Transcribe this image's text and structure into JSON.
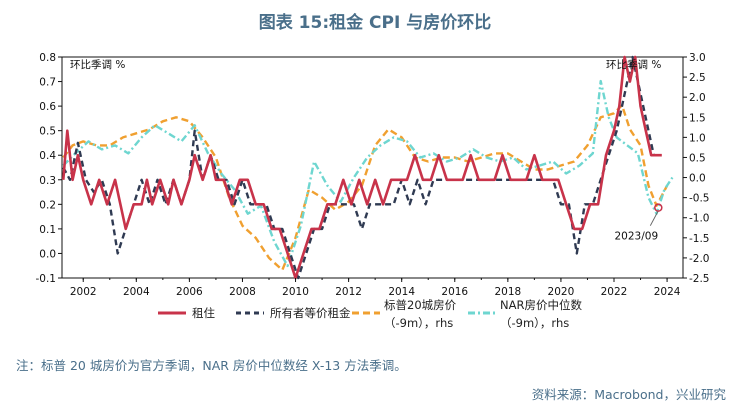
{
  "title": "图表 15:租金 CPI 与房价环比",
  "note": "注：标普 20 城房价为官方季调，NAR 房价中位数经 X-13 方法季调。",
  "source": "资料来源：Macrobond，兴业研究",
  "chart_data": {
    "type": "line",
    "left_axis_label": "环比季调 %",
    "right_axis_label": "环比季调 %",
    "x_ticks": [
      "2002",
      "2004",
      "2006",
      "2008",
      "2010",
      "2012",
      "2014",
      "2016",
      "2018",
      "2020",
      "2022",
      "2024"
    ],
    "y_left": {
      "range": [
        -0.1,
        0.8
      ],
      "ticks": [
        "-0.1",
        "0.0",
        "0.1",
        "0.2",
        "0.3",
        "0.4",
        "0.5",
        "0.6",
        "0.7",
        "0.8"
      ]
    },
    "y_right": {
      "range": [
        -2.5,
        3.0
      ],
      "ticks": [
        "-2.5",
        "-2.0",
        "-1.5",
        "-1.0",
        "-0.5",
        "0.0",
        "0.5",
        "1.0",
        "1.5",
        "2.0",
        "2.5",
        "3.0"
      ]
    },
    "x_range": [
      2001.2,
      2024.6
    ],
    "annotation": {
      "text": "2023/09",
      "x": 2023.67,
      "y": -0.75
    },
    "colors": {
      "rent": "#c8334a",
      "oer": "#2f3a52",
      "cs20": "#f0a030",
      "nar": "#6ed6d0"
    },
    "series": [
      {
        "key": "rent",
        "name": "租住",
        "axis": "left",
        "style": "solid",
        "points": [
          [
            2001.25,
            0.3
          ],
          [
            2001.4,
            0.5
          ],
          [
            2001.6,
            0.3
          ],
          [
            2001.8,
            0.4
          ],
          [
            2002.0,
            0.3
          ],
          [
            2002.3,
            0.2
          ],
          [
            2002.6,
            0.3
          ],
          [
            2002.9,
            0.2
          ],
          [
            2003.2,
            0.3
          ],
          [
            2003.4,
            0.2
          ],
          [
            2003.6,
            0.1
          ],
          [
            2003.9,
            0.2
          ],
          [
            2004.2,
            0.2
          ],
          [
            2004.4,
            0.3
          ],
          [
            2004.6,
            0.2
          ],
          [
            2004.9,
            0.3
          ],
          [
            2005.2,
            0.2
          ],
          [
            2005.4,
            0.3
          ],
          [
            2005.7,
            0.2
          ],
          [
            2006.0,
            0.3
          ],
          [
            2006.2,
            0.4
          ],
          [
            2006.5,
            0.3
          ],
          [
            2006.8,
            0.4
          ],
          [
            2007.0,
            0.3
          ],
          [
            2007.3,
            0.3
          ],
          [
            2007.6,
            0.2
          ],
          [
            2007.9,
            0.3
          ],
          [
            2008.2,
            0.3
          ],
          [
            2008.5,
            0.2
          ],
          [
            2008.8,
            0.2
          ],
          [
            2009.1,
            0.1
          ],
          [
            2009.4,
            0.1
          ],
          [
            2009.7,
            0.0
          ],
          [
            2010.0,
            -0.1
          ],
          [
            2010.3,
            0.0
          ],
          [
            2010.6,
            0.1
          ],
          [
            2010.9,
            0.1
          ],
          [
            2011.2,
            0.2
          ],
          [
            2011.5,
            0.2
          ],
          [
            2011.8,
            0.3
          ],
          [
            2012.1,
            0.2
          ],
          [
            2012.4,
            0.3
          ],
          [
            2012.7,
            0.2
          ],
          [
            2013.0,
            0.3
          ],
          [
            2013.3,
            0.2
          ],
          [
            2013.6,
            0.3
          ],
          [
            2013.9,
            0.3
          ],
          [
            2014.2,
            0.3
          ],
          [
            2014.5,
            0.4
          ],
          [
            2014.8,
            0.3
          ],
          [
            2015.1,
            0.3
          ],
          [
            2015.4,
            0.4
          ],
          [
            2015.7,
            0.3
          ],
          [
            2016.0,
            0.3
          ],
          [
            2016.3,
            0.3
          ],
          [
            2016.6,
            0.4
          ],
          [
            2016.9,
            0.3
          ],
          [
            2017.2,
            0.3
          ],
          [
            2017.5,
            0.3
          ],
          [
            2017.8,
            0.4
          ],
          [
            2018.1,
            0.3
          ],
          [
            2018.4,
            0.3
          ],
          [
            2018.7,
            0.3
          ],
          [
            2019.0,
            0.4
          ],
          [
            2019.3,
            0.3
          ],
          [
            2019.6,
            0.3
          ],
          [
            2019.9,
            0.3
          ],
          [
            2020.2,
            0.2
          ],
          [
            2020.5,
            0.1
          ],
          [
            2020.8,
            0.1
          ],
          [
            2021.1,
            0.2
          ],
          [
            2021.4,
            0.2
          ],
          [
            2021.7,
            0.4
          ],
          [
            2022.0,
            0.5
          ],
          [
            2022.2,
            0.6
          ],
          [
            2022.4,
            0.8
          ],
          [
            2022.6,
            0.7
          ],
          [
            2022.8,
            0.8
          ],
          [
            2023.0,
            0.6
          ],
          [
            2023.2,
            0.5
          ],
          [
            2023.4,
            0.4
          ],
          [
            2023.6,
            0.4
          ],
          [
            2023.8,
            0.4
          ]
        ]
      },
      {
        "key": "oer",
        "name": "所有者等价租金",
        "axis": "left",
        "style": "dashed",
        "points": [
          [
            2001.25,
            0.35
          ],
          [
            2001.5,
            0.3
          ],
          [
            2001.8,
            0.45
          ],
          [
            2002.1,
            0.3
          ],
          [
            2002.4,
            0.25
          ],
          [
            2002.7,
            0.3
          ],
          [
            2003.0,
            0.2
          ],
          [
            2003.3,
            0.0
          ],
          [
            2003.6,
            0.1
          ],
          [
            2003.9,
            0.2
          ],
          [
            2004.2,
            0.3
          ],
          [
            2004.5,
            0.2
          ],
          [
            2004.8,
            0.3
          ],
          [
            2005.1,
            0.2
          ],
          [
            2005.4,
            0.3
          ],
          [
            2005.7,
            0.2
          ],
          [
            2006.0,
            0.3
          ],
          [
            2006.2,
            0.5
          ],
          [
            2006.5,
            0.3
          ],
          [
            2006.8,
            0.4
          ],
          [
            2007.1,
            0.3
          ],
          [
            2007.4,
            0.3
          ],
          [
            2007.7,
            0.2
          ],
          [
            2008.0,
            0.3
          ],
          [
            2008.3,
            0.2
          ],
          [
            2008.6,
            0.2
          ],
          [
            2008.9,
            0.2
          ],
          [
            2009.2,
            0.1
          ],
          [
            2009.5,
            0.1
          ],
          [
            2009.8,
            0.0
          ],
          [
            2010.1,
            -0.1
          ],
          [
            2010.4,
            0.0
          ],
          [
            2010.7,
            0.1
          ],
          [
            2011.0,
            0.1
          ],
          [
            2011.3,
            0.2
          ],
          [
            2011.6,
            0.2
          ],
          [
            2011.9,
            0.2
          ],
          [
            2012.2,
            0.2
          ],
          [
            2012.5,
            0.1
          ],
          [
            2012.8,
            0.2
          ],
          [
            2013.1,
            0.2
          ],
          [
            2013.4,
            0.2
          ],
          [
            2013.7,
            0.2
          ],
          [
            2014.0,
            0.3
          ],
          [
            2014.3,
            0.2
          ],
          [
            2014.6,
            0.3
          ],
          [
            2014.9,
            0.2
          ],
          [
            2015.2,
            0.3
          ],
          [
            2015.5,
            0.3
          ],
          [
            2015.8,
            0.3
          ],
          [
            2016.1,
            0.3
          ],
          [
            2016.4,
            0.3
          ],
          [
            2016.7,
            0.3
          ],
          [
            2017.0,
            0.3
          ],
          [
            2017.3,
            0.3
          ],
          [
            2017.6,
            0.3
          ],
          [
            2017.9,
            0.3
          ],
          [
            2018.2,
            0.3
          ],
          [
            2018.5,
            0.3
          ],
          [
            2018.8,
            0.3
          ],
          [
            2019.1,
            0.3
          ],
          [
            2019.4,
            0.3
          ],
          [
            2019.7,
            0.3
          ],
          [
            2020.0,
            0.2
          ],
          [
            2020.3,
            0.2
          ],
          [
            2020.6,
            0.0
          ],
          [
            2020.9,
            0.2
          ],
          [
            2021.2,
            0.2
          ],
          [
            2021.5,
            0.3
          ],
          [
            2021.8,
            0.4
          ],
          [
            2022.1,
            0.5
          ],
          [
            2022.3,
            0.6
          ],
          [
            2022.5,
            0.7
          ],
          [
            2022.7,
            0.8
          ],
          [
            2022.9,
            0.7
          ],
          [
            2023.1,
            0.6
          ],
          [
            2023.3,
            0.5
          ],
          [
            2023.5,
            0.4
          ],
          [
            2023.7,
            0.4
          ]
        ]
      },
      {
        "key": "cs20",
        "name": "标普20城房价（-9m），rhs",
        "axis": "right",
        "style": "dashed",
        "points": [
          [
            2001.25,
            0.5
          ],
          [
            2001.6,
            0.8
          ],
          [
            2002.0,
            0.9
          ],
          [
            2002.5,
            0.8
          ],
          [
            2003.0,
            0.8
          ],
          [
            2003.5,
            1.0
          ],
          [
            2004.0,
            1.1
          ],
          [
            2004.5,
            1.2
          ],
          [
            2005.0,
            1.4
          ],
          [
            2005.5,
            1.5
          ],
          [
            2006.0,
            1.4
          ],
          [
            2006.5,
            1.0
          ],
          [
            2007.0,
            0.5
          ],
          [
            2007.5,
            -0.5
          ],
          [
            2008.0,
            -1.2
          ],
          [
            2008.5,
            -1.5
          ],
          [
            2009.0,
            -2.0
          ],
          [
            2009.5,
            -2.3
          ],
          [
            2010.0,
            -1.5
          ],
          [
            2010.5,
            -0.3
          ],
          [
            2011.0,
            -0.5
          ],
          [
            2011.5,
            -0.8
          ],
          [
            2012.0,
            -0.6
          ],
          [
            2012.5,
            -0.2
          ],
          [
            2013.0,
            0.8
          ],
          [
            2013.5,
            1.2
          ],
          [
            2014.0,
            1.0
          ],
          [
            2014.5,
            0.5
          ],
          [
            2015.0,
            0.4
          ],
          [
            2015.5,
            0.5
          ],
          [
            2016.0,
            0.5
          ],
          [
            2016.5,
            0.4
          ],
          [
            2017.0,
            0.5
          ],
          [
            2017.5,
            0.6
          ],
          [
            2018.0,
            0.6
          ],
          [
            2018.5,
            0.4
          ],
          [
            2019.0,
            0.2
          ],
          [
            2019.5,
            0.2
          ],
          [
            2020.0,
            0.3
          ],
          [
            2020.5,
            0.4
          ],
          [
            2021.0,
            0.8
          ],
          [
            2021.5,
            1.5
          ],
          [
            2022.0,
            1.6
          ],
          [
            2022.3,
            1.8
          ],
          [
            2022.6,
            1.2
          ],
          [
            2023.0,
            0.8
          ],
          [
            2023.3,
            -0.2
          ],
          [
            2023.6,
            -0.7
          ],
          [
            2024.0,
            -0.2
          ]
        ]
      },
      {
        "key": "nar",
        "name": "NAR房价中位数（-9m），rhs",
        "axis": "right",
        "style": "dashdot",
        "points": [
          [
            2001.25,
            0.3
          ],
          [
            2001.7,
            0.6
          ],
          [
            2002.2,
            0.9
          ],
          [
            2002.7,
            0.7
          ],
          [
            2003.2,
            0.8
          ],
          [
            2003.7,
            0.6
          ],
          [
            2004.2,
            1.0
          ],
          [
            2004.7,
            1.3
          ],
          [
            2005.2,
            1.1
          ],
          [
            2005.7,
            0.9
          ],
          [
            2006.2,
            1.3
          ],
          [
            2006.7,
            0.6
          ],
          [
            2007.2,
            0.1
          ],
          [
            2007.7,
            -0.3
          ],
          [
            2008.2,
            -0.9
          ],
          [
            2008.7,
            -0.7
          ],
          [
            2009.2,
            -1.6
          ],
          [
            2009.7,
            -2.2
          ],
          [
            2010.2,
            -1.2
          ],
          [
            2010.7,
            0.4
          ],
          [
            2011.2,
            -0.2
          ],
          [
            2011.7,
            -0.6
          ],
          [
            2012.2,
            0.0
          ],
          [
            2012.7,
            0.5
          ],
          [
            2013.2,
            0.8
          ],
          [
            2013.7,
            1.0
          ],
          [
            2014.2,
            0.9
          ],
          [
            2014.7,
            0.5
          ],
          [
            2015.2,
            0.6
          ],
          [
            2015.7,
            0.4
          ],
          [
            2016.2,
            0.5
          ],
          [
            2016.7,
            0.7
          ],
          [
            2017.2,
            0.5
          ],
          [
            2017.7,
            0.4
          ],
          [
            2018.2,
            0.5
          ],
          [
            2018.7,
            0.2
          ],
          [
            2019.2,
            0.3
          ],
          [
            2019.7,
            0.4
          ],
          [
            2020.2,
            0.1
          ],
          [
            2020.7,
            0.3
          ],
          [
            2021.2,
            0.6
          ],
          [
            2021.5,
            2.4
          ],
          [
            2021.8,
            1.5
          ],
          [
            2022.1,
            1.0
          ],
          [
            2022.5,
            0.8
          ],
          [
            2022.9,
            0.6
          ],
          [
            2023.3,
            -0.5
          ],
          [
            2023.6,
            -0.9
          ],
          [
            2023.9,
            -0.3
          ],
          [
            2024.2,
            0.0
          ]
        ]
      }
    ]
  },
  "legend": {
    "rent": "租住",
    "oer": "所有者等价租金",
    "cs20_line1": "标普20城房价",
    "cs20_line2": "（-9m），rhs",
    "nar_line1": "NAR房价中位数",
    "nar_line2": "（-9m），rhs"
  }
}
